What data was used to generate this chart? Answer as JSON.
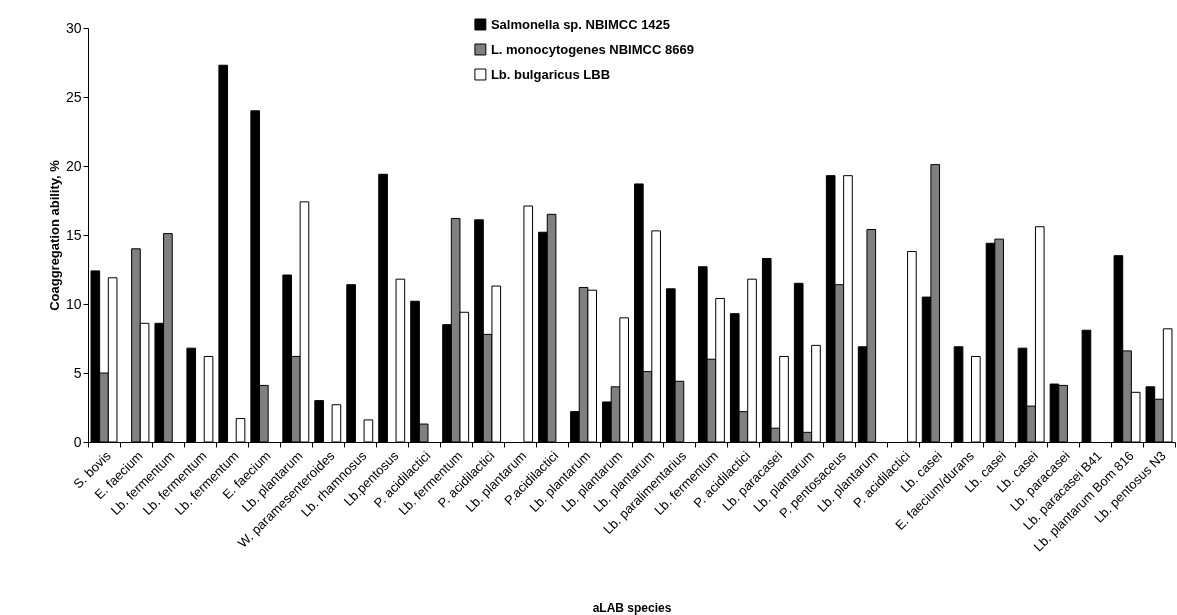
{
  "chart_data": {
    "type": "bar",
    "xlabel": "aLAB species",
    "ylabel": "Coaggregation ability, %",
    "categories": [
      "S. bovis",
      "E. faecium",
      "Lb. fermentum",
      "Lb. fermentum",
      "Lb. fermentum",
      "E. faecium",
      "Lb. plantarum",
      "W. paramesenteroides",
      "Lb. rhamnosus",
      "Lb.pentosus",
      "P. acidilactici",
      "Lb. fermentum",
      "P. acidilactici",
      "Lb. plantarum",
      "P.acidilactici",
      "Lb. plantarum",
      "Lb. plantarum",
      "Lb. plantarum",
      "Lb. paralimentarius",
      "Lb. fermentum",
      "P. acidilactici",
      "Lb. paracasei",
      "Lb. plantarum",
      "P. pentosaceus",
      "Lb. plantarum",
      "P. acidilactici",
      "Lb. casei",
      "E. faecium/durans",
      "Lb. casei",
      "Lb. casei",
      "Lb. paracasei",
      "Lb. paracasei B41",
      "Lb. plantarum Bom 816",
      "Lb. pentosus N3"
    ],
    "series": [
      {
        "name": "Salmonella sp. NBIMCC 1425",
        "color": "#000000",
        "values": [
          12.4,
          null,
          8.6,
          6.8,
          27.3,
          24.0,
          12.1,
          3.0,
          11.4,
          19.4,
          10.2,
          8.5,
          16.1,
          null,
          15.2,
          2.2,
          2.9,
          18.7,
          11.1,
          12.7,
          9.3,
          13.3,
          11.5,
          19.3,
          6.9,
          null,
          10.5,
          6.9,
          14.4,
          6.8,
          4.2,
          8.1,
          13.5,
          4.0
        ]
      },
      {
        "name": "L. monocytogenes NBIMCC 8669",
        "color": "#808080",
        "values": [
          5.0,
          14.0,
          15.1,
          null,
          null,
          4.1,
          6.2,
          null,
          null,
          null,
          1.3,
          16.2,
          7.8,
          null,
          16.5,
          11.2,
          4.0,
          5.1,
          4.4,
          6.0,
          2.2,
          1.0,
          0.7,
          11.4,
          15.4,
          null,
          20.1,
          null,
          14.7,
          2.6,
          4.1,
          null,
          6.6,
          3.1
        ]
      },
      {
        "name": "Lb. bulgaricus LBB",
        "color": "#ffffff",
        "values": [
          11.9,
          8.6,
          null,
          6.2,
          1.7,
          null,
          17.4,
          2.7,
          1.6,
          11.8,
          null,
          9.4,
          11.3,
          17.1,
          null,
          11.0,
          9.0,
          15.3,
          null,
          10.4,
          11.8,
          6.2,
          7.0,
          19.3,
          null,
          13.8,
          null,
          6.2,
          null,
          15.6,
          null,
          null,
          3.6,
          8.2
        ]
      }
    ],
    "ylim": [
      0,
      30
    ],
    "yticks": [
      0,
      5,
      10,
      15,
      20,
      25,
      30
    ],
    "legend": "top"
  }
}
